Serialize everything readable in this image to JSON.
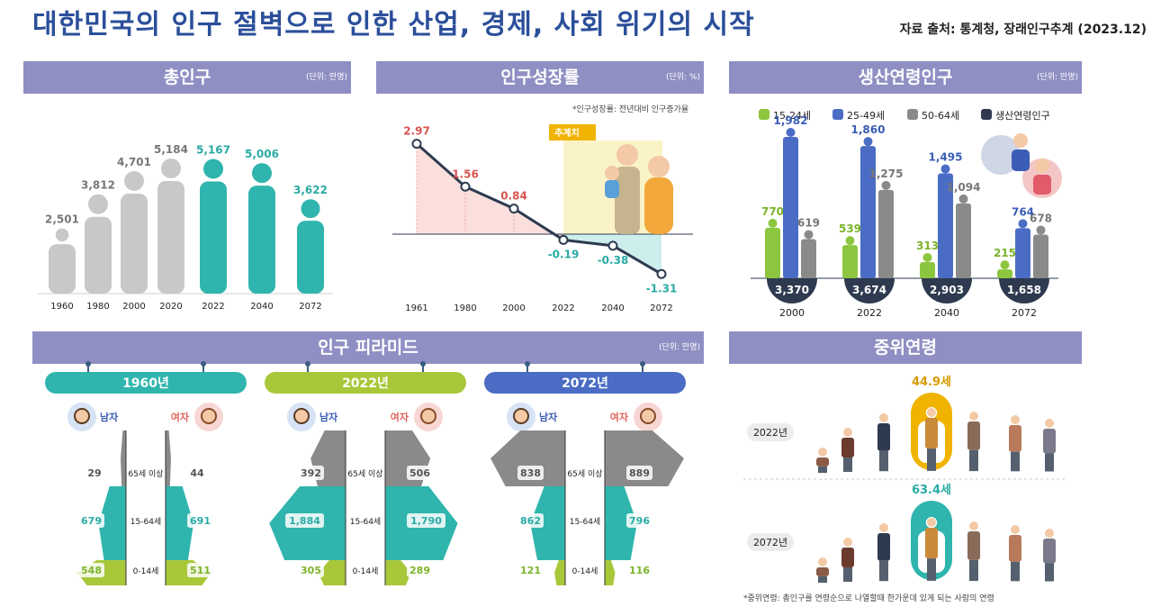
{
  "header": {
    "title": "대한민국의 인구 절벽으로 인한 산업, 경제, 사회 위기의 시작",
    "source": "자료 출처: 통계청, 장래인구추계 (2023.12)"
  },
  "panels": {
    "total": {
      "title": "총인구",
      "unit": "(단위: 만명)"
    },
    "growth": {
      "title": "인구성장률",
      "unit": "(단위: %)",
      "note": "*인구성장률: 전년대비 인구증가율",
      "projection_label": "추계치"
    },
    "working": {
      "title": "생산연령인구",
      "unit": "(단위: 만명)"
    },
    "pyramid": {
      "title": "인구 피라미드",
      "unit": "(단위: 만명)"
    },
    "median": {
      "title": "중위연령",
      "note": "*중위연령: 총인구를 연령순으로 나열할때 한가운데 있게 되는 사람의 연령"
    }
  },
  "chart_data": [
    {
      "type": "bar",
      "title": "총인구",
      "categories": [
        "1960",
        "1980",
        "2000",
        "2020",
        "2022",
        "2040",
        "2072"
      ],
      "values": [
        2501,
        3812,
        4701,
        5184,
        5167,
        5006,
        3622
      ],
      "value_labels": [
        "2,501",
        "3,812",
        "4,701",
        "5,184",
        "5,167",
        "5,006",
        "3,622"
      ],
      "highlight_from": "2022",
      "colors": {
        "past": "#c8c8c8",
        "projection": "#2fb5ad",
        "past_label": "#777777",
        "projection_label": "#2aaba4"
      }
    },
    {
      "type": "line",
      "title": "인구성장률",
      "x": [
        "1961",
        "1980",
        "2000",
        "2022",
        "2040",
        "2072"
      ],
      "y": [
        2.97,
        1.56,
        0.84,
        -0.19,
        -0.38,
        -1.31
      ],
      "value_labels": [
        "2.97",
        "1.56",
        "0.84",
        "-0.19",
        "-0.38",
        "-1.31"
      ],
      "colors": {
        "positive": "#d9534f",
        "negative": "#2aaba4",
        "line": "#2e3a4f"
      }
    },
    {
      "type": "bar",
      "title": "생산연령인구",
      "legend": [
        "15-24세",
        "25-49세",
        "50-64세",
        "생산연령인구"
      ],
      "legend_colors": [
        "#8cc63f",
        "#4a6cc4",
        "#8a8a8a",
        "#2e3a4f"
      ],
      "categories": [
        "2000",
        "2022",
        "2040",
        "2072"
      ],
      "series": [
        {
          "name": "15-24세",
          "values": [
            770,
            539,
            313,
            215
          ],
          "labels": [
            "770",
            "539",
            "313",
            "215"
          ]
        },
        {
          "name": "25-49세",
          "values": [
            1982,
            1860,
            1495,
            764
          ],
          "labels": [
            "1,982",
            "1,860",
            "1,495",
            "764"
          ]
        },
        {
          "name": "50-64세",
          "values": [
            619,
            1275,
            1094,
            678
          ],
          "labels": [
            "619",
            "1,275",
            "1,094",
            "678"
          ]
        }
      ],
      "totals": [
        "3,370",
        "3,674",
        "2,903",
        "1,658"
      ]
    },
    {
      "type": "pyramid",
      "title": "인구 피라미드",
      "years": [
        "1960년",
        "2022년",
        "2072년"
      ],
      "year_colors": [
        "#2fb5ad",
        "#a8c83a",
        "#4a6cc4"
      ],
      "male_label": "남자",
      "female_label": "여자",
      "groups": [
        "65세 이상",
        "15-64세",
        "0-14세"
      ],
      "male": [
        [
          "29",
          "679",
          "548"
        ],
        [
          "392",
          "1,884",
          "305"
        ],
        [
          "838",
          "862",
          "121"
        ]
      ],
      "female": [
        [
          "44",
          "691",
          "511"
        ],
        [
          "506",
          "1,790",
          "289"
        ],
        [
          "889",
          "796",
          "116"
        ]
      ],
      "male_values": [
        [
          29,
          679,
          548
        ],
        [
          392,
          1884,
          305
        ],
        [
          838,
          862,
          121
        ]
      ],
      "female_values": [
        [
          44,
          691,
          511
        ],
        [
          506,
          1790,
          289
        ],
        [
          889,
          796,
          116
        ]
      ]
    },
    {
      "type": "table",
      "title": "중위연령",
      "rows": [
        {
          "year": "2022년",
          "value": "44.9세",
          "color": "#f0b400",
          "text_color": "#d89a00"
        },
        {
          "year": "2072년",
          "value": "63.4세",
          "color": "#2fb5ad",
          "text_color": "#2aaba4"
        }
      ]
    }
  ]
}
